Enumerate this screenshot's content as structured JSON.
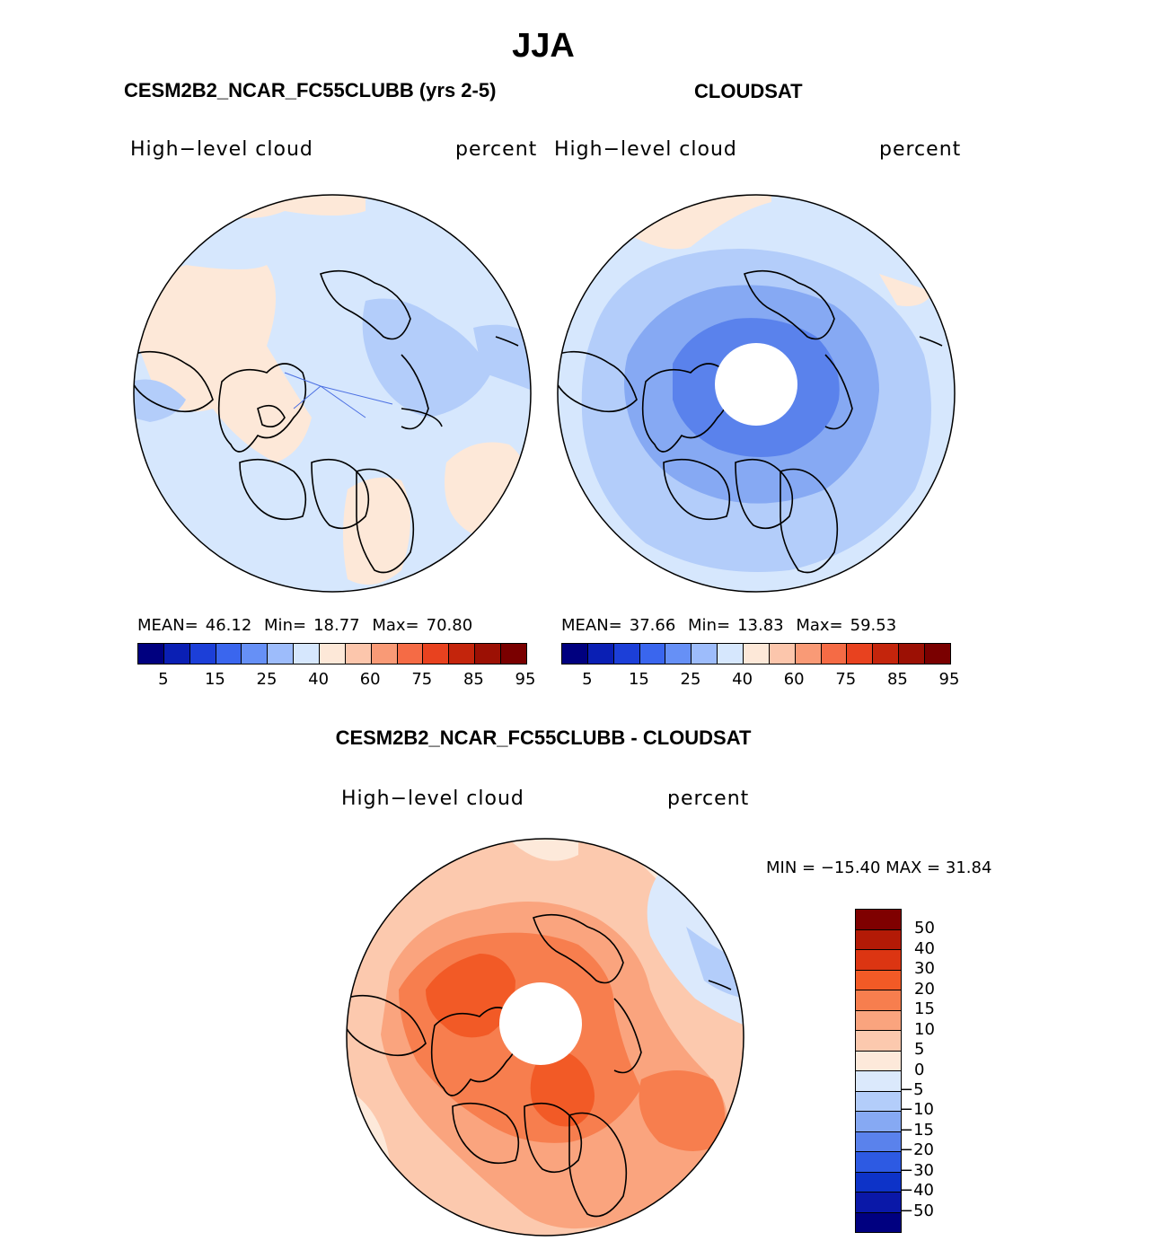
{
  "title": "JJA",
  "panels": {
    "model": {
      "title": "CESM2B2_NCAR_FC55CLUBB (yrs 2-5)",
      "variable": "High−level cloud",
      "units": "percent",
      "stats": {
        "mean_label": "MEAN=",
        "mean": "46.12",
        "min_label": "Min=",
        "min": "18.77",
        "max_label": "Max=",
        "max": "70.80"
      }
    },
    "obs": {
      "title": "CLOUDSAT",
      "variable": "High−level cloud",
      "units": "percent",
      "stats": {
        "mean_label": "MEAN=",
        "mean": "37.66",
        "min_label": "Min=",
        "min": "13.83",
        "max_label": "Max=",
        "max": "59.53"
      }
    },
    "diff": {
      "title": "CESM2B2_NCAR_FC55CLUBB - CLOUDSAT",
      "variable": "High−level cloud",
      "units": "percent",
      "stats_text": "MIN = −15.40 MAX =  31.84"
    }
  },
  "colorbar_abs": {
    "ticks": [
      "5",
      "15",
      "25",
      "40",
      "60",
      "75",
      "85",
      "95"
    ],
    "colors": [
      "#00007f",
      "#0a1fb4",
      "#1c3fd8",
      "#3a66ee",
      "#6690f6",
      "#9dbcfb",
      "#d6e7fd",
      "#fde8d8",
      "#fcc6ac",
      "#f99a76",
      "#f56b45",
      "#e8421f",
      "#c4250c",
      "#9c1004",
      "#7a0000"
    ]
  },
  "colorbar_diff": {
    "ticks": [
      "50",
      "40",
      "30",
      "20",
      "15",
      "10",
      "5",
      "0",
      "−5",
      "−10",
      "−15",
      "−20",
      "−30",
      "−40",
      "−50"
    ],
    "colors": [
      "#7f0000",
      "#b31a06",
      "#dc3512",
      "#f25a26",
      "#f77e4e",
      "#faa47e",
      "#fcc9ae",
      "#fde9da",
      "#dbe9fc",
      "#b3cdfa",
      "#86a9f3",
      "#5a82ec",
      "#2d5ae3",
      "#0d33c8",
      "#0a18a8",
      "#000080"
    ]
  }
}
